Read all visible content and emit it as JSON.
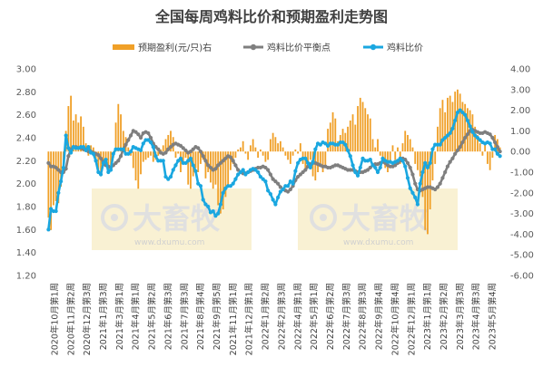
{
  "chart_data": {
    "type": "bar",
    "title": "全国每周鸡料比价和预期盈利走势图",
    "legend": {
      "position": "top",
      "entries": [
        {
          "key": "profit",
          "label": "预期盈利(元/只)右",
          "marker": "bar"
        },
        {
          "key": "balance",
          "label": "鸡料比价平衡点",
          "marker": "line-dot"
        },
        {
          "key": "ratio",
          "label": "鸡料比价",
          "marker": "line-dot"
        }
      ]
    },
    "y_left": {
      "range": [
        1.2,
        3.0
      ],
      "ticks": [
        "1.20",
        "1.40",
        "1.60",
        "1.80",
        "2.00",
        "2.20",
        "2.40",
        "2.60",
        "2.80",
        "3.00"
      ]
    },
    "y_right": {
      "range": [
        -6.0,
        4.0
      ],
      "ticks": [
        "-6.00",
        "-5.00",
        "-4.00",
        "-3.00",
        "-2.00",
        "-1.00",
        "0.00",
        "1.00",
        "2.00",
        "3.00",
        "4.00"
      ]
    },
    "x_tick_labels": [
      "2020年10月第1周",
      "2020年11月第2周",
      "2020年12月第3周",
      "2021年1月第3周",
      "2021年3月第1周",
      "2021年4月第1周",
      "2021年5月第2周",
      "2021年6月第3周",
      "2021年7月第3周",
      "2021年8月第4周",
      "2021年9月第5周",
      "2021年11月第1周",
      "2021年12月第1周",
      "2022年1月第2周",
      "2022年2月第3周",
      "2022年4月第1周",
      "2022年5月第1周",
      "2022年6月第2周",
      "2022年7月第3周",
      "2022年8月第3周",
      "2022年9月第4周",
      "2022年10月第4周",
      "2022年12月第1周",
      "2023年1月第1周",
      "2023年2月第2周",
      "2023年3月第3周",
      "2023年4月第3周",
      "2023年5月第4周"
    ],
    "grid": false,
    "watermark": {
      "text": "大畜牧",
      "subtext": "www.dxumu.com"
    },
    "series": [
      {
        "key": "profit",
        "name": "预期盈利(元/只)右",
        "axis": "right",
        "type": "bar",
        "color": "#F0A028",
        "values": [
          -3.2,
          -3.8,
          -2.6,
          -2.4,
          -2.5,
          -1.7,
          -0.6,
          1.0,
          2.2,
          2.7,
          1.5,
          1.8,
          1.4,
          1.7,
          1.2,
          0.4,
          -0.2,
          0.3,
          0.2,
          -0.4,
          -0.9,
          -1.2,
          -0.6,
          -0.4,
          -1.0,
          -0.7,
          -0.3,
          1.4,
          2.3,
          1.8,
          1.0,
          0.7,
          0.2,
          -0.2,
          -0.8,
          -1.4,
          -1.8,
          -1.1,
          -0.5,
          -0.4,
          -0.3,
          -0.2,
          -0.5,
          -0.4,
          -0.2,
          0.1,
          0.3,
          0.6,
          0.8,
          1.0,
          0.7,
          -0.3,
          -0.1,
          -1.0,
          -0.6,
          -0.3,
          -1.6,
          -1.8,
          -1.2,
          -0.8,
          -1.0,
          -0.6,
          -0.4,
          -1.3,
          -1.0,
          -1.5,
          -1.8,
          -1.6,
          -2.6,
          -3.0,
          -2.8,
          -2.2,
          -1.6,
          -0.9,
          -0.6,
          -0.3,
          0.1,
          0.2,
          0.5,
          -0.1,
          -0.4,
          0.3,
          0.6,
          0.2,
          -0.3,
          0.1,
          -0.2,
          -0.5,
          -0.4,
          0.6,
          0.9,
          0.7,
          0.4,
          0.5,
          0.2,
          -0.2,
          -0.4,
          -0.6,
          -0.2,
          0.1,
          -0.1,
          0.4,
          -0.6,
          -0.8,
          -0.6,
          -0.4,
          -1.2,
          -1.4,
          -1.0,
          -0.6,
          -1.0,
          -0.8,
          1.1,
          1.4,
          1.9,
          1.6,
          0.5,
          0.8,
          1.1,
          0.9,
          1.2,
          1.5,
          1.8,
          1.3,
          2.2,
          2.6,
          2.4,
          2.1,
          1.8,
          1.6,
          0.6,
          0.2,
          0.6,
          -0.2,
          -0.4,
          -0.8,
          -1.0,
          -0.5,
          0.3,
          -0.4,
          0.2,
          -0.6,
          0.4,
          1.0,
          0.8,
          0.6,
          0.2,
          -0.6,
          -0.9,
          -1.2,
          -2.2,
          -3.8,
          -4.0,
          -2.8,
          -1.4,
          -0.6,
          1.2,
          2.1,
          2.5,
          1.9,
          2.6,
          2.7,
          2.4,
          2.9,
          3.0,
          2.8,
          2.4,
          2.3,
          2.1,
          2.0,
          1.8,
          1.2,
          0.8,
          0.4,
          -0.2,
          0.4,
          -0.6,
          -0.9,
          -0.3,
          0.8,
          0.6,
          0.2
        ]
      },
      {
        "key": "balance",
        "name": "鸡料比价平衡点",
        "axis": "left",
        "type": "line",
        "color": "#7F7F7F",
        "values": [
          2.18,
          2.15,
          2.15,
          2.14,
          2.12,
          2.1,
          2.1,
          2.13,
          2.24,
          2.3,
          2.32,
          2.32,
          2.31,
          2.31,
          2.3,
          2.3,
          2.28,
          2.28,
          2.27,
          2.26,
          2.25,
          2.22,
          2.19,
          2.16,
          2.15,
          2.14,
          2.16,
          2.18,
          2.2,
          2.24,
          2.3,
          2.34,
          2.38,
          2.42,
          2.46,
          2.45,
          2.43,
          2.4,
          2.44,
          2.45,
          2.44,
          2.4,
          2.35,
          2.32,
          2.3,
          2.27,
          2.26,
          2.27,
          2.3,
          2.32,
          2.34,
          2.35,
          2.34,
          2.33,
          2.31,
          2.29,
          2.27,
          2.28,
          2.3,
          2.32,
          2.31,
          2.28,
          2.24,
          2.2,
          2.16,
          2.14,
          2.12,
          2.13,
          2.16,
          2.18,
          2.2,
          2.22,
          2.24,
          2.23,
          2.2,
          2.16,
          2.12,
          2.1,
          2.09,
          2.09,
          2.1,
          2.11,
          2.12,
          2.13,
          2.14,
          2.14,
          2.15,
          2.14,
          2.12,
          2.08,
          2.04,
          2.02,
          2.0,
          1.97,
          1.95,
          1.94,
          1.93,
          1.95,
          1.98,
          2.03,
          2.06,
          2.08,
          2.1,
          2.12,
          2.15,
          2.17,
          2.18,
          2.18,
          2.17,
          2.16,
          2.15,
          2.15,
          2.14,
          2.14,
          2.15,
          2.16,
          2.16,
          2.15,
          2.14,
          2.13,
          2.12,
          2.12,
          2.12,
          2.11,
          2.1,
          2.1,
          2.1,
          2.11,
          2.12,
          2.14,
          2.16,
          2.17,
          2.17,
          2.18,
          2.19,
          2.18,
          2.16,
          2.15,
          2.15,
          2.16,
          2.18,
          2.2,
          2.22,
          2.21,
          2.18,
          2.14,
          2.08,
          2.0,
          1.95,
          1.94,
          1.95,
          1.96,
          1.97,
          1.97,
          1.96,
          1.95,
          1.97,
          2.0,
          2.05,
          2.1,
          2.15,
          2.19,
          2.22,
          2.26,
          2.29,
          2.32,
          2.36,
          2.4,
          2.43,
          2.46,
          2.47,
          2.46,
          2.45,
          2.44,
          2.44,
          2.45,
          2.44,
          2.43,
          2.4,
          2.36,
          2.32,
          2.28
        ]
      },
      {
        "key": "ratio",
        "name": "鸡料比价",
        "axis": "left",
        "type": "line",
        "color": "#1AA7E0",
        "values": [
          1.6,
          1.78,
          1.76,
          1.76,
          1.92,
          2.02,
          2.14,
          2.42,
          2.31,
          2.27,
          2.32,
          2.31,
          2.31,
          2.32,
          2.32,
          2.29,
          2.32,
          2.27,
          2.26,
          2.2,
          2.1,
          2.08,
          2.18,
          2.21,
          2.1,
          2.12,
          2.26,
          2.3,
          2.3,
          2.3,
          2.3,
          2.26,
          2.26,
          2.28,
          2.32,
          2.31,
          2.3,
          2.29,
          2.35,
          2.38,
          2.38,
          2.36,
          2.32,
          2.24,
          2.2,
          2.2,
          2.2,
          2.06,
          2.04,
          2.06,
          2.12,
          2.16,
          2.2,
          2.22,
          2.18,
          2.18,
          2.2,
          2.22,
          2.16,
          2.11,
          2.0,
          1.98,
          1.86,
          1.82,
          1.8,
          1.75,
          1.76,
          1.72,
          1.74,
          1.82,
          1.92,
          1.96,
          1.98,
          1.98,
          2.0,
          2.04,
          2.08,
          2.1,
          2.12,
          2.08,
          2.1,
          2.12,
          2.13,
          2.12,
          2.1,
          2.06,
          2.04,
          2.02,
          1.94,
          1.91,
          1.86,
          1.82,
          1.88,
          1.93,
          1.95,
          1.98,
          1.98,
          2.02,
          2.0,
          2.11,
          2.18,
          2.21,
          2.22,
          2.22,
          2.18,
          2.14,
          2.19,
          2.3,
          2.35,
          2.34,
          2.36,
          2.35,
          2.33,
          2.35,
          2.35,
          2.34,
          2.34,
          2.36,
          2.36,
          2.34,
          2.29,
          2.24,
          2.16,
          2.1,
          2.07,
          2.14,
          2.22,
          2.2,
          2.2,
          2.21,
          2.16,
          2.14,
          2.1,
          2.14,
          2.22,
          2.2,
          2.19,
          2.19,
          2.18,
          2.19,
          2.2,
          2.22,
          2.2,
          2.15,
          2.05,
          1.96,
          1.92,
          1.88,
          1.82,
          2.0,
          2.1,
          2.18,
          2.14,
          2.18,
          2.3,
          2.34,
          2.34,
          2.34,
          2.38,
          2.4,
          2.42,
          2.44,
          2.48,
          2.55,
          2.62,
          2.64,
          2.62,
          2.6,
          2.55,
          2.5,
          2.45,
          2.42,
          2.4,
          2.38,
          2.36,
          2.35,
          2.36,
          2.35,
          2.3,
          2.3,
          2.26,
          2.24
        ]
      }
    ]
  }
}
